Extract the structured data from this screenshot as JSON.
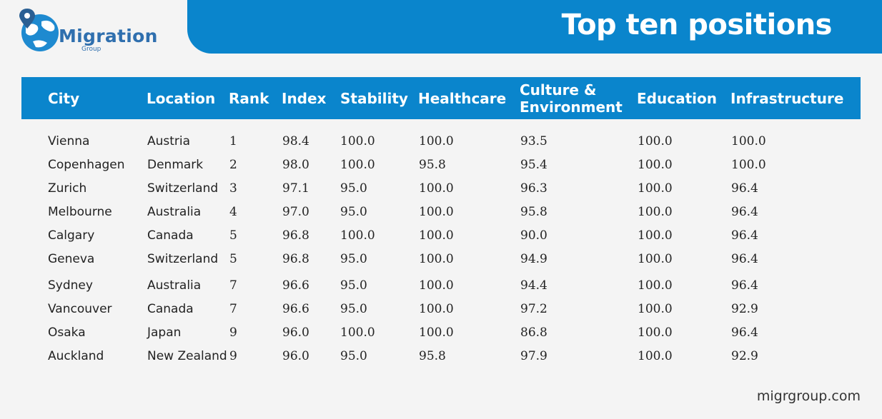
{
  "logo": {
    "name": "Migration",
    "sub": "Group"
  },
  "header": {
    "title": "Top ten positions"
  },
  "table": {
    "columns": [
      "City",
      "Location",
      "Rank",
      "Index",
      "Stability",
      "Healthcare",
      "Culture &\nEnvironment",
      "Education",
      "Infrastructure"
    ],
    "rows": [
      [
        "Vienna",
        "Austria",
        "1",
        "98.4",
        "100.0",
        "100.0",
        "93.5",
        "100.0",
        "100.0"
      ],
      [
        "Copenhagen",
        "Denmark",
        "2",
        "98.0",
        "100.0",
        "95.8",
        "95.4",
        "100.0",
        "100.0"
      ],
      [
        "Zurich",
        "Switzerland",
        "3",
        "97.1",
        "95.0",
        "100.0",
        "96.3",
        "100.0",
        "96.4"
      ],
      [
        "Melbourne",
        "Australia",
        "4",
        "97.0",
        "95.0",
        "100.0",
        "95.8",
        "100.0",
        "96.4"
      ],
      [
        "Calgary",
        "Canada",
        "5",
        "96.8",
        "100.0",
        "100.0",
        "90.0",
        "100.0",
        "96.4"
      ],
      [
        "Geneva",
        "Switzerland",
        "5",
        "96.8",
        "95.0",
        "100.0",
        "94.9",
        "100.0",
        "96.4"
      ],
      [
        "Sydney",
        "Australia",
        "7",
        "96.6",
        "95.0",
        "100.0",
        "94.4",
        "100.0",
        "96.4"
      ],
      [
        "Vancouver",
        "Canada",
        "7",
        "96.6",
        "95.0",
        "100.0",
        "97.2",
        "100.0",
        "92.9"
      ],
      [
        "Osaka",
        "Japan",
        "9",
        "96.0",
        "100.0",
        "100.0",
        "86.8",
        "100.0",
        "96.4"
      ],
      [
        "Auckland",
        "New Zealand",
        "9",
        "96.0",
        "95.0",
        "95.8",
        "97.9",
        "100.0",
        "92.9"
      ]
    ]
  },
  "footer": {
    "site": "migrgroup.com"
  },
  "colors": {
    "accent": "#0a85cc",
    "logo_text": "#2f6fae"
  }
}
